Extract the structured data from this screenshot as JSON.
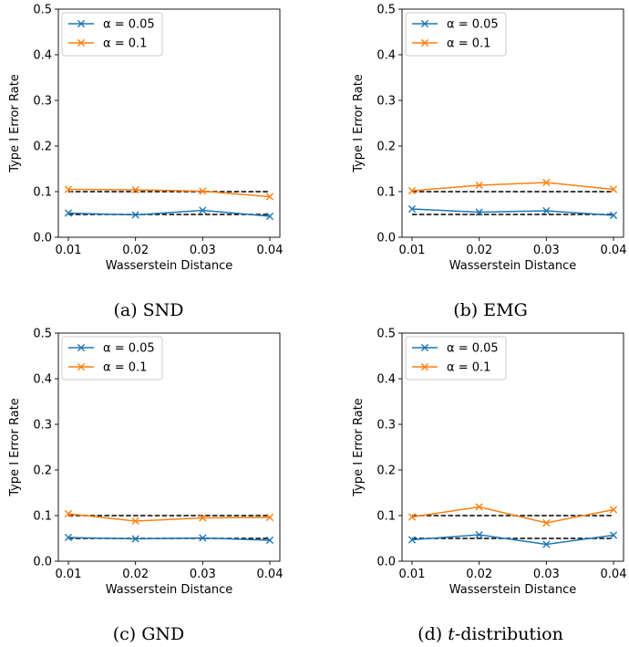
{
  "chart_data": [
    {
      "type": "line",
      "caption": "(a) SND",
      "xlabel": "Wasserstein Distance",
      "ylabel": "Type I Error Rate",
      "x": [
        0.01,
        0.02,
        0.03,
        0.04
      ],
      "x_tick_labels": [
        "0.01",
        "0.02",
        "0.03",
        "0.04"
      ],
      "ylim": [
        0,
        0.5
      ],
      "y_ticks": [
        "0.0",
        "0.1",
        "0.2",
        "0.3",
        "0.4",
        "0.5"
      ],
      "legend_position": "top-left",
      "series": [
        {
          "name": "α = 0.05",
          "color": "#1f77b4",
          "values": [
            0.053,
            0.049,
            0.059,
            0.046
          ]
        },
        {
          "name": "α = 0.1",
          "color": "#ff7f0e",
          "values": [
            0.105,
            0.104,
            0.101,
            0.089
          ]
        }
      ],
      "reference_lines": [
        0.05,
        0.1
      ]
    },
    {
      "type": "line",
      "caption": "(b) EMG",
      "xlabel": "Wasserstein Distance",
      "ylabel": "Type I Error Rate",
      "x": [
        0.01,
        0.02,
        0.03,
        0.04
      ],
      "x_tick_labels": [
        "0.01",
        "0.02",
        "0.03",
        "0.04"
      ],
      "ylim": [
        0,
        0.5
      ],
      "y_ticks": [
        "0.0",
        "0.1",
        "0.2",
        "0.3",
        "0.4",
        "0.5"
      ],
      "legend_position": "top-left",
      "series": [
        {
          "name": "α = 0.05",
          "color": "#1f77b4",
          "values": [
            0.062,
            0.055,
            0.058,
            0.048
          ]
        },
        {
          "name": "α = 0.1",
          "color": "#ff7f0e",
          "values": [
            0.102,
            0.114,
            0.12,
            0.105
          ]
        }
      ],
      "reference_lines": [
        0.05,
        0.1
      ]
    },
    {
      "type": "line",
      "caption": "(c) GND",
      "xlabel": "Wasserstein Distance",
      "ylabel": "Type I Error Rate",
      "x": [
        0.01,
        0.02,
        0.03,
        0.04
      ],
      "x_tick_labels": [
        "0.01",
        "0.02",
        "0.03",
        "0.04"
      ],
      "ylim": [
        0,
        0.5
      ],
      "y_ticks": [
        "0.0",
        "0.1",
        "0.2",
        "0.3",
        "0.4",
        "0.5"
      ],
      "legend_position": "top-left",
      "series": [
        {
          "name": "α = 0.05",
          "color": "#1f77b4",
          "values": [
            0.052,
            0.049,
            0.051,
            0.046
          ]
        },
        {
          "name": "α = 0.1",
          "color": "#ff7f0e",
          "values": [
            0.104,
            0.088,
            0.095,
            0.096
          ]
        }
      ],
      "reference_lines": [
        0.05,
        0.1
      ]
    },
    {
      "type": "line",
      "caption": "(d) t-distribution",
      "caption_prefix": "(d) ",
      "caption_italic": "t",
      "caption_suffix": "-distribution",
      "xlabel": "Wasserstein Distance",
      "ylabel": "Type I Error Rate",
      "x": [
        0.01,
        0.02,
        0.03,
        0.04
      ],
      "x_tick_labels": [
        "0.01",
        "0.02",
        "0.03",
        "0.04"
      ],
      "ylim": [
        0,
        0.5
      ],
      "y_ticks": [
        "0.0",
        "0.1",
        "0.2",
        "0.3",
        "0.4",
        "0.5"
      ],
      "legend_position": "top-left",
      "series": [
        {
          "name": "α = 0.05",
          "color": "#1f77b4",
          "values": [
            0.047,
            0.058,
            0.037,
            0.057
          ]
        },
        {
          "name": "α = 0.1",
          "color": "#ff7f0e",
          "values": [
            0.097,
            0.119,
            0.084,
            0.113
          ]
        }
      ],
      "reference_lines": [
        0.05,
        0.1
      ]
    }
  ]
}
